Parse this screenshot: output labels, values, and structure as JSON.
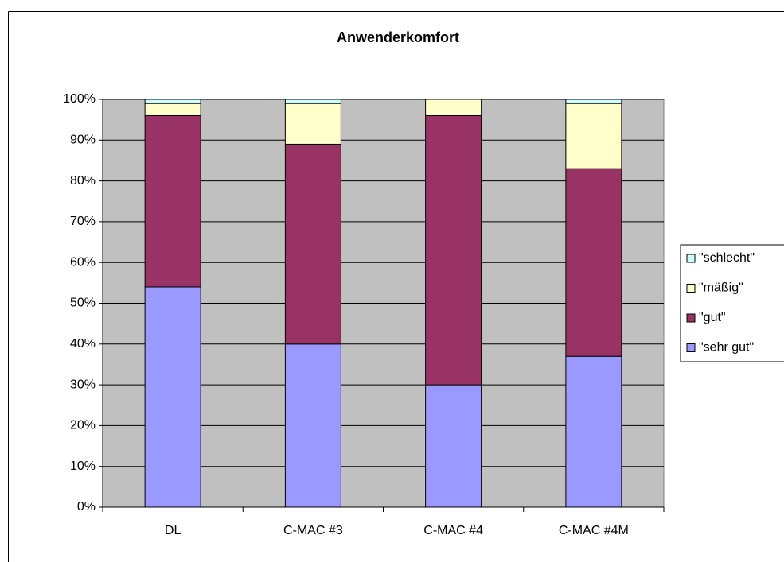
{
  "chart_data": {
    "type": "stacked_bar",
    "title": "Anwenderkomfort",
    "categories": [
      "DL",
      "C-MAC #3",
      "C-MAC #4",
      "C-MAC #4M"
    ],
    "series": [
      {
        "name": "\"sehr gut\"",
        "color": "#9999ff",
        "values": [
          54,
          40,
          30,
          37
        ]
      },
      {
        "name": "\"gut\"",
        "color": "#993366",
        "values": [
          42,
          49,
          66,
          46
        ]
      },
      {
        "name": "\"mäßig\"",
        "color": "#ffffcc",
        "values": [
          3,
          10,
          4,
          16
        ]
      },
      {
        "name": "\"schlecht\"",
        "color": "#ccffff",
        "values": [
          1,
          1,
          0,
          1
        ]
      }
    ],
    "ylim": [
      0,
      100
    ],
    "yticks": [
      {
        "value": 0,
        "label": "0%"
      },
      {
        "value": 10,
        "label": "10%"
      },
      {
        "value": 20,
        "label": "20%"
      },
      {
        "value": 30,
        "label": "30%"
      },
      {
        "value": 40,
        "label": "40%"
      },
      {
        "value": 50,
        "label": "50%"
      },
      {
        "value": 60,
        "label": "60%"
      },
      {
        "value": 70,
        "label": "70%"
      },
      {
        "value": 80,
        "label": "80%"
      },
      {
        "value": 90,
        "label": "90%"
      },
      {
        "value": 100,
        "label": "100%"
      }
    ],
    "grid": true,
    "legend": "right",
    "plot_background": "#c0c0c0"
  }
}
